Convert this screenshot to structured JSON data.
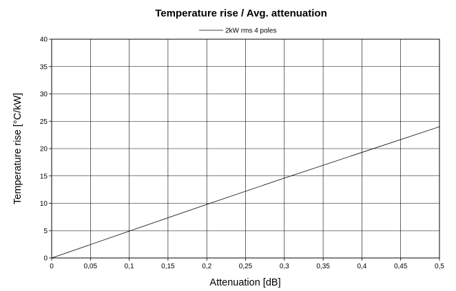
{
  "chart_data": {
    "type": "line",
    "title": "Temperature rise / Avg. attenuation",
    "xlabel": "Attenuation [dB]",
    "ylabel": "Temperature rise [°C/kW]",
    "xlim": [
      0,
      0.5
    ],
    "ylim": [
      0,
      40
    ],
    "x_ticks": [
      0,
      0.05,
      0.1,
      0.15,
      0.2,
      0.25,
      0.3,
      0.35,
      0.4,
      0.45,
      0.5
    ],
    "x_tick_labels": [
      "0",
      "0,05",
      "0,1",
      "0,15",
      "0,2",
      "0,25",
      "0,3",
      "0,35",
      "0,4",
      "0,45",
      "0,5"
    ],
    "y_ticks": [
      0,
      5,
      10,
      15,
      20,
      25,
      30,
      35,
      40
    ],
    "y_tick_labels": [
      "0",
      "5",
      "10",
      "15",
      "20",
      "25",
      "30",
      "35",
      "40"
    ],
    "grid": true,
    "legend_position": "top-center",
    "series": [
      {
        "name": "2kW rms 4 poles",
        "color": "#000000",
        "x": [
          0,
          0.1,
          0.2,
          0.3,
          0.4,
          0.5
        ],
        "y": [
          0,
          4.9,
          9.8,
          14.6,
          19.3,
          24
        ]
      }
    ]
  }
}
